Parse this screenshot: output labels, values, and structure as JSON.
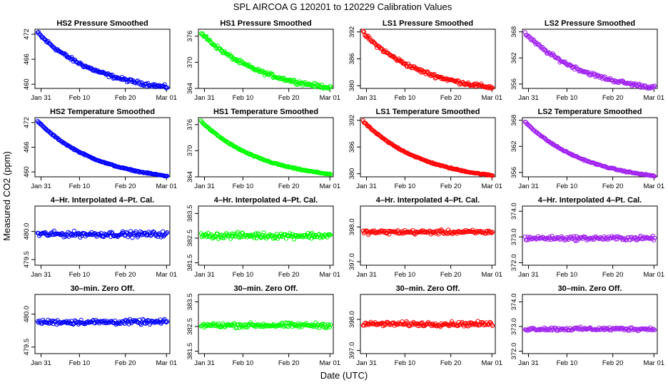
{
  "figure": {
    "title": "SPL   AIRCOA G   120201 to 120229   Calibration Values",
    "xlabel": "Date (UTC)",
    "ylabel": "Measured CO2 (ppm)"
  },
  "colors": {
    "HS2": "#0000ff",
    "HS1": "#00ff00",
    "LS1": "#ff0000",
    "LS2": "#a020f0"
  },
  "chart_data": [
    {
      "type": "scatter",
      "title": "HS2 Pressure Smoothed",
      "row": 0,
      "col": 0,
      "color": "#0000ff",
      "kind": "decay",
      "start": 473.0,
      "end": 459.3,
      "noise": 0.35,
      "x_ticks": [
        "Jan 31",
        "Feb 10",
        "Feb 20",
        "Mar 01"
      ],
      "xlim": [
        0,
        30
      ],
      "y_ticks": [
        "460",
        "466",
        "472"
      ],
      "y_tick_values": [
        460,
        466,
        472
      ],
      "ylim": [
        459,
        473.2
      ]
    },
    {
      "type": "scatter",
      "title": "HS1 Pressure Smoothed",
      "row": 0,
      "col": 1,
      "color": "#00ff00",
      "kind": "decay",
      "start": 377.4,
      "end": 364.2,
      "noise": 0.35,
      "x_ticks": [
        "Jan 31",
        "Feb 10",
        "Feb 20",
        "Mar 01"
      ],
      "xlim": [
        0,
        30
      ],
      "y_ticks": [
        "364",
        "370",
        "376"
      ],
      "y_tick_values": [
        364,
        370,
        376
      ],
      "ylim": [
        364,
        377.6
      ]
    },
    {
      "type": "scatter",
      "title": "LS1 Pressure Smoothed",
      "row": 0,
      "col": 2,
      "color": "#ff0000",
      "kind": "decay",
      "start": 392.4,
      "end": 379.6,
      "noise": 0.35,
      "x_ticks": [
        "Jan 31",
        "Feb 10",
        "Feb 20",
        "Mar 01"
      ],
      "xlim": [
        0,
        30
      ],
      "y_ticks": [
        "380",
        "386",
        "392"
      ],
      "y_tick_values": [
        380,
        386,
        392
      ],
      "ylim": [
        379.4,
        392.6
      ]
    },
    {
      "type": "scatter",
      "title": "LS2 Pressure Smoothed",
      "row": 0,
      "col": 3,
      "color": "#a020f0",
      "kind": "decay",
      "start": 368.3,
      "end": 355.2,
      "noise": 0.35,
      "x_ticks": [
        "Jan 31",
        "Feb 10",
        "Feb 20",
        "Mar 01"
      ],
      "xlim": [
        0,
        30
      ],
      "y_ticks": [
        "356",
        "362",
        "368"
      ],
      "y_tick_values": [
        356,
        362,
        368
      ],
      "ylim": [
        355,
        368.6
      ]
    },
    {
      "type": "scatter",
      "title": "HS2 Temperature Smoothed",
      "row": 1,
      "col": 0,
      "color": "#0000ff",
      "kind": "decay",
      "start": 473.0,
      "end": 459.0,
      "noise": 0.12,
      "x_ticks": [
        "Jan 31",
        "Feb 10",
        "Feb 20",
        "Mar 01"
      ],
      "xlim": [
        0,
        30
      ],
      "y_ticks": [
        "460",
        "466",
        "472"
      ],
      "y_tick_values": [
        460,
        466,
        472
      ],
      "ylim": [
        458.8,
        473.2
      ]
    },
    {
      "type": "scatter",
      "title": "HS1 Temperature Smoothed",
      "row": 1,
      "col": 1,
      "color": "#00ff00",
      "kind": "decay",
      "start": 377.4,
      "end": 364.6,
      "noise": 0.12,
      "x_ticks": [
        "Jan 31",
        "Feb 10",
        "Feb 20",
        "Mar 01"
      ],
      "xlim": [
        0,
        30
      ],
      "y_ticks": [
        "364",
        "370",
        "376"
      ],
      "y_tick_values": [
        364,
        370,
        376
      ],
      "ylim": [
        364,
        377.6
      ]
    },
    {
      "type": "scatter",
      "title": "LS1 Temperature Smoothed",
      "row": 1,
      "col": 2,
      "color": "#ff0000",
      "kind": "decay",
      "start": 392.4,
      "end": 379.6,
      "noise": 0.12,
      "x_ticks": [
        "Jan 31",
        "Feb 10",
        "Feb 20",
        "Mar 01"
      ],
      "xlim": [
        0,
        30
      ],
      "y_ticks": [
        "380",
        "386",
        "392"
      ],
      "y_tick_values": [
        380,
        386,
        392
      ],
      "ylim": [
        379.3,
        392.6
      ]
    },
    {
      "type": "scatter",
      "title": "LS2 Temperature Smoothed",
      "row": 1,
      "col": 3,
      "color": "#a020f0",
      "kind": "decay",
      "start": 368.3,
      "end": 355.2,
      "noise": 0.12,
      "x_ticks": [
        "Jan 31",
        "Feb 10",
        "Feb 20",
        "Mar 01"
      ],
      "xlim": [
        0,
        30
      ],
      "y_ticks": [
        "356",
        "362",
        "368"
      ],
      "y_tick_values": [
        356,
        362,
        368
      ],
      "ylim": [
        355,
        368.6
      ]
    },
    {
      "type": "scatter",
      "title": "4–Hr. Interpolated 4–Pt. Cal.",
      "row": 2,
      "col": 0,
      "color": "#0000ff",
      "kind": "flat",
      "level": 479.95,
      "noise": 0.04,
      "x_ticks": [
        "Jan 31",
        "Feb 10",
        "Feb 20",
        "Mar 01"
      ],
      "xlim": [
        0,
        30
      ],
      "y_ticks": [
        "479.5",
        "480.0"
      ],
      "y_tick_values": [
        479.5,
        480.0
      ],
      "ylim": [
        479.4,
        480.45
      ]
    },
    {
      "type": "scatter",
      "title": "4–Hr. Interpolated 4–Pt. Cal.",
      "row": 2,
      "col": 1,
      "color": "#00ff00",
      "kind": "flat",
      "level": 382.6,
      "noise": 0.1,
      "x_ticks": [
        "Jan 31",
        "Feb 10",
        "Feb 20",
        "Mar 01"
      ],
      "xlim": [
        0,
        30
      ],
      "y_ticks": [
        "381.5",
        "382.5",
        "383.5"
      ],
      "y_tick_values": [
        381.5,
        382.5,
        383.5
      ],
      "ylim": [
        381.4,
        383.8
      ]
    },
    {
      "type": "scatter",
      "title": "4–Hr. Interpolated 4–Pt. Cal.",
      "row": 2,
      "col": 2,
      "color": "#ff0000",
      "kind": "flat",
      "level": 397.85,
      "noise": 0.05,
      "x_ticks": [
        "Jan 31",
        "Feb 10",
        "Feb 20",
        "Mar 01"
      ],
      "xlim": [
        0,
        30
      ],
      "y_ticks": [
        "397.0",
        "398.0"
      ],
      "y_tick_values": [
        397.0,
        398.0
      ],
      "ylim": [
        396.9,
        398.6
      ]
    },
    {
      "type": "scatter",
      "title": "4–Hr. Interpolated 4–Pt. Cal.",
      "row": 2,
      "col": 3,
      "color": "#a020f0",
      "kind": "flat",
      "level": 372.95,
      "noise": 0.07,
      "x_ticks": [
        "Jan 31",
        "Feb 10",
        "Feb 20",
        "Mar 01"
      ],
      "xlim": [
        0,
        30
      ],
      "y_ticks": [
        "372.0",
        "373.0",
        "374.0"
      ],
      "y_tick_values": [
        372.0,
        373.0,
        374.0
      ],
      "ylim": [
        371.9,
        374.2
      ]
    },
    {
      "type": "scatter",
      "title": "30–min. Zero Off.",
      "row": 3,
      "col": 0,
      "color": "#0000ff",
      "kind": "flat",
      "level": 479.88,
      "noise": 0.03,
      "x_ticks": [
        "Jan 31",
        "Feb 10",
        "Feb 20",
        "Mar 01"
      ],
      "xlim": [
        0,
        30
      ],
      "y_ticks": [
        "479.5",
        "480.0"
      ],
      "y_tick_values": [
        479.5,
        480.0
      ],
      "ylim": [
        479.4,
        480.3
      ]
    },
    {
      "type": "scatter",
      "title": "30–min. Zero Off.",
      "row": 3,
      "col": 1,
      "color": "#00ff00",
      "kind": "flat",
      "level": 382.55,
      "noise": 0.08,
      "x_ticks": [
        "Jan 31",
        "Feb 10",
        "Feb 20",
        "Mar 01"
      ],
      "xlim": [
        0,
        30
      ],
      "y_ticks": [
        "381.5",
        "382.5",
        "383.5"
      ],
      "y_tick_values": [
        381.5,
        382.5,
        383.5
      ],
      "ylim": [
        381.4,
        383.8
      ]
    },
    {
      "type": "scatter",
      "title": "30–min. Zero Off.",
      "row": 3,
      "col": 2,
      "color": "#ff0000",
      "kind": "flat",
      "level": 397.85,
      "noise": 0.06,
      "x_ticks": [
        "Jan 31",
        "Feb 10",
        "Feb 20",
        "Mar 01"
      ],
      "xlim": [
        0,
        30
      ],
      "y_ticks": [
        "397.0",
        "398.0"
      ],
      "y_tick_values": [
        397.0,
        398.0
      ],
      "ylim": [
        396.9,
        398.8
      ]
    },
    {
      "type": "scatter",
      "title": "30–min. Zero Off.",
      "row": 3,
      "col": 3,
      "color": "#a020f0",
      "kind": "flat",
      "level": 372.9,
      "noise": 0.06,
      "x_ticks": [
        "Jan 31",
        "Feb 10",
        "Feb 20",
        "Mar 01"
      ],
      "xlim": [
        0,
        30
      ],
      "y_ticks": [
        "372.0",
        "373.0",
        "374.0"
      ],
      "y_tick_values": [
        372.0,
        373.0,
        374.0
      ],
      "ylim": [
        371.9,
        374.3
      ]
    }
  ]
}
